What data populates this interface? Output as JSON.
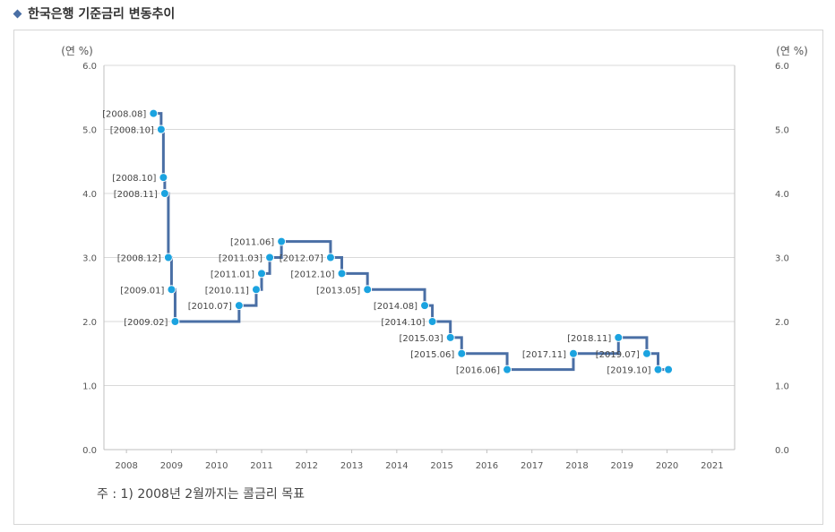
{
  "header": {
    "title": "한국은행 기준금리 변동추이"
  },
  "footnote": "주 : 1) 2008년 2월까지는 콜금리 목표",
  "chart_data": {
    "type": "line",
    "step": true,
    "title": "",
    "y_unit_left": "(연 %)",
    "y_unit_right": "(연 %)",
    "ylim": [
      0,
      6
    ],
    "yticks": [
      "0.0",
      "1.0",
      "2.0",
      "3.0",
      "4.0",
      "5.0",
      "6.0"
    ],
    "xlim": [
      2007.5,
      2021.5
    ],
    "xticks": [
      "2008",
      "2009",
      "2010",
      "2011",
      "2012",
      "2013",
      "2014",
      "2015",
      "2016",
      "2017",
      "2018",
      "2019",
      "2020",
      "2021"
    ],
    "grid": true,
    "colors": {
      "line": "#4a6fa5",
      "point": "#1ba3e0",
      "grid": "#d9d9d9",
      "text": "#555555"
    },
    "series": [
      {
        "points": [
          {
            "x": 2008.6,
            "y": 5.25,
            "label": "[2008.08]"
          },
          {
            "x": 2008.77,
            "y": 5.0,
            "label": "[2008.10]"
          },
          {
            "x": 2008.82,
            "y": 4.25,
            "label": "[2008.10]"
          },
          {
            "x": 2008.85,
            "y": 4.0,
            "label": "[2008.11]"
          },
          {
            "x": 2008.93,
            "y": 3.0,
            "label": "[2008.12]"
          },
          {
            "x": 2009.0,
            "y": 2.5,
            "label": "[2009.01]"
          },
          {
            "x": 2009.08,
            "y": 2.0,
            "label": "[2009.02]"
          },
          {
            "x": 2010.5,
            "y": 2.25,
            "label": "[2010.07]"
          },
          {
            "x": 2010.88,
            "y": 2.5,
            "label": "[2010.11]"
          },
          {
            "x": 2011.0,
            "y": 2.75,
            "label": "[2011.01]"
          },
          {
            "x": 2011.18,
            "y": 3.0,
            "label": "[2011.03]"
          },
          {
            "x": 2011.44,
            "y": 3.25,
            "label": "[2011.06]"
          },
          {
            "x": 2012.53,
            "y": 3.0,
            "label": "[2012.07]"
          },
          {
            "x": 2012.78,
            "y": 2.75,
            "label": "[2012.10]"
          },
          {
            "x": 2013.35,
            "y": 2.5,
            "label": "[2013.05]"
          },
          {
            "x": 2014.62,
            "y": 2.25,
            "label": "[2014.08]"
          },
          {
            "x": 2014.79,
            "y": 2.0,
            "label": "[2014.10]"
          },
          {
            "x": 2015.19,
            "y": 1.75,
            "label": "[2015.03]"
          },
          {
            "x": 2015.44,
            "y": 1.5,
            "label": "[2015.06]"
          },
          {
            "x": 2016.45,
            "y": 1.25,
            "label": "[2016.06]"
          },
          {
            "x": 2017.92,
            "y": 1.5,
            "label": "[2017.11]"
          },
          {
            "x": 2018.92,
            "y": 1.75,
            "label": "[2018.11]"
          },
          {
            "x": 2019.55,
            "y": 1.5,
            "label": "[2019.07]"
          },
          {
            "x": 2019.8,
            "y": 1.25,
            "label": "[2019.10]"
          },
          {
            "x": 2020.03,
            "y": 1.25,
            "label": ""
          }
        ]
      }
    ]
  }
}
